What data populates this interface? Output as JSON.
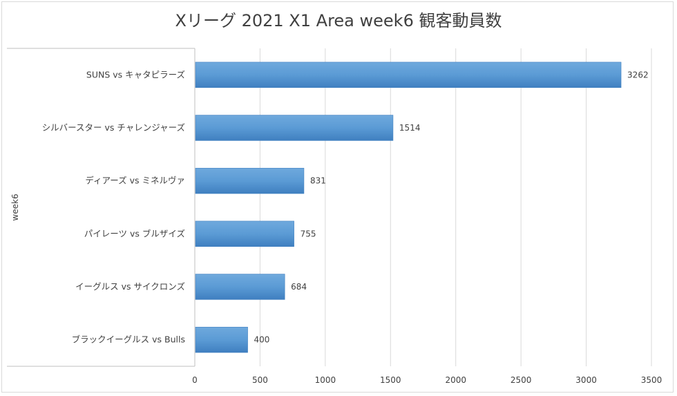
{
  "chart_data": {
    "type": "bar",
    "orientation": "horizontal",
    "title": "Xリーグ 2021 X1 Area week6 観客動員数",
    "ylabel": "week6",
    "xlabel": "",
    "categories": [
      "SUNS vs キャタピラーズ",
      "シルバースター vs チャレンジャーズ",
      "ディアーズ vs ミネルヴァ",
      "パイレーツ vs ブルザイズ",
      "イーグルス vs サイクロンズ",
      "ブラックイーグルス vs Bulls"
    ],
    "values": [
      3262,
      1514,
      831,
      755,
      684,
      400
    ],
    "xlim": [
      0,
      3500
    ],
    "xticks": [
      "0",
      "500",
      "1000",
      "1500",
      "2000",
      "2500",
      "3000",
      "3500"
    ],
    "grid": "vertical",
    "legend": "none",
    "colors": {
      "bar": "#5b9bd5",
      "bar_dark": "#3f7fc0",
      "grid": "#d9d9d9",
      "text": "#404040"
    }
  }
}
